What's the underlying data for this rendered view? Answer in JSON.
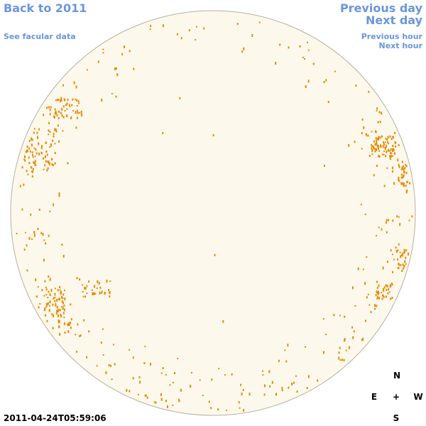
{
  "header": {
    "back": "Back to 2011",
    "facular": "See facular data",
    "previous_day": "Previous day",
    "next_day": "Next day",
    "previous_hour": "Previous hour",
    "next_hour": "Next hour"
  },
  "timestamp": "2011-04-24T05:59:06",
  "compass": {
    "north": "N",
    "east": "E",
    "center": "+",
    "west": "W",
    "south": "S"
  }
}
